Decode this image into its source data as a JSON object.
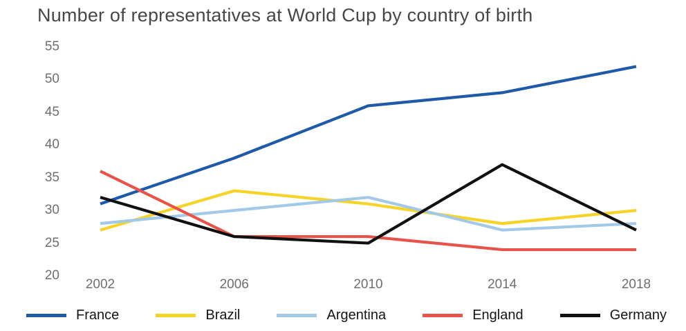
{
  "chart_data": {
    "type": "line",
    "title": "Number of representatives at World Cup by country of birth",
    "categories": [
      "2002",
      "2006",
      "2010",
      "2014",
      "2018"
    ],
    "series": [
      {
        "name": "France",
        "color": "#1f5aa8",
        "values": [
          31,
          38,
          46,
          48,
          52
        ]
      },
      {
        "name": "Brazil",
        "color": "#f5d327",
        "values": [
          27,
          33,
          31,
          28,
          30
        ]
      },
      {
        "name": "Argentina",
        "color": "#a3c9e8",
        "values": [
          28,
          30,
          32,
          27,
          28
        ]
      },
      {
        "name": "England",
        "color": "#e85349",
        "values": [
          36,
          26,
          26,
          24,
          24
        ]
      },
      {
        "name": "Germany",
        "color": "#111111",
        "values": [
          32,
          26,
          25,
          37,
          27
        ]
      }
    ],
    "xlabel": "",
    "ylabel": "",
    "ylim": [
      20,
      55
    ],
    "yticks": [
      55,
      50,
      45,
      40,
      35,
      30,
      25,
      20
    ],
    "grid": false,
    "legend_position": "bottom"
  }
}
